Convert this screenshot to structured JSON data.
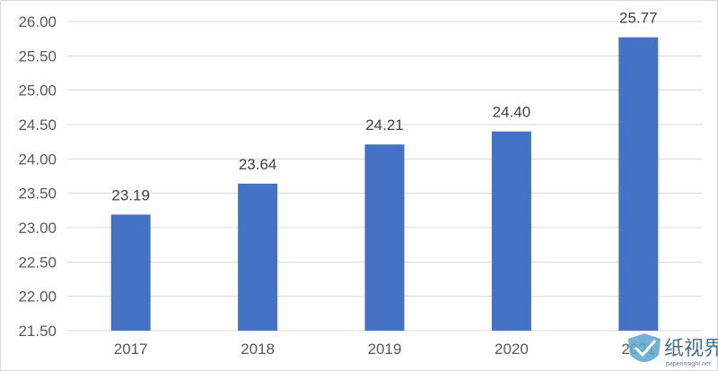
{
  "chart_data": {
    "type": "bar",
    "categories": [
      "2017",
      "2018",
      "2019",
      "2020",
      "2021"
    ],
    "values": [
      23.19,
      23.64,
      24.21,
      24.4,
      25.77
    ],
    "data_labels": [
      "23.19",
      "23.64",
      "24.21",
      "24.40",
      "25.77"
    ],
    "yticks": [
      "21.50",
      "22.00",
      "22.50",
      "23.00",
      "23.50",
      "24.00",
      "24.50",
      "25.00",
      "25.50",
      "26.00"
    ],
    "ylim": [
      21.5,
      26.0
    ],
    "title": "",
    "xlabel": "",
    "ylabel": "",
    "grid": true,
    "legend": "none",
    "bar_color": "#4472c4",
    "grid_color": "#d9d9d9"
  },
  "watermark": {
    "text": "纸视界",
    "subtext": "paperinsight.net"
  }
}
